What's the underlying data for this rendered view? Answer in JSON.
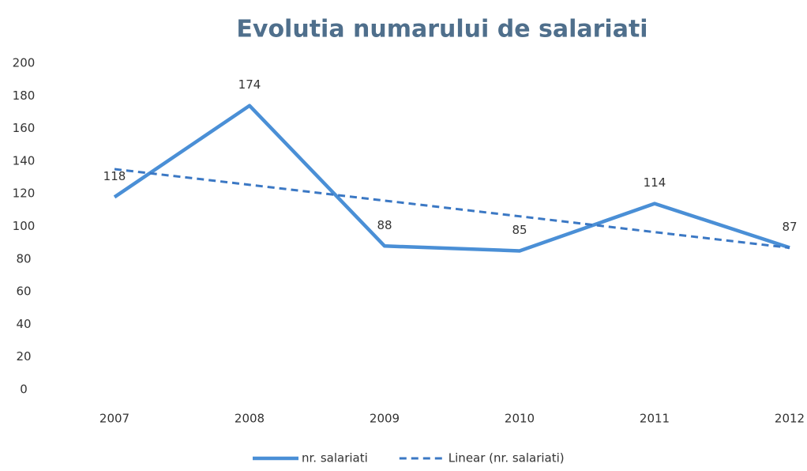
{
  "chart_data": {
    "type": "line",
    "title": "Evolutia numarului de salariati",
    "categories": [
      "2007",
      "2008",
      "2009",
      "2010",
      "2011",
      "2012"
    ],
    "series": [
      {
        "name": "nr. salariati",
        "color": "#4a8fd6",
        "values": [
          118,
          174,
          88,
          85,
          114,
          87
        ],
        "data_labels": true,
        "dashed": false
      },
      {
        "name": "Linear (nr. salariati)",
        "color": "#3b78c4",
        "values": [
          135.1,
          125.5,
          115.8,
          106.2,
          96.5,
          86.9
        ],
        "data_labels": false,
        "dashed": true
      }
    ],
    "ylim": [
      0,
      200
    ],
    "yticks": [
      0,
      20,
      40,
      60,
      80,
      100,
      120,
      140,
      160,
      180,
      200
    ],
    "grid": false,
    "legend": "bottom"
  }
}
